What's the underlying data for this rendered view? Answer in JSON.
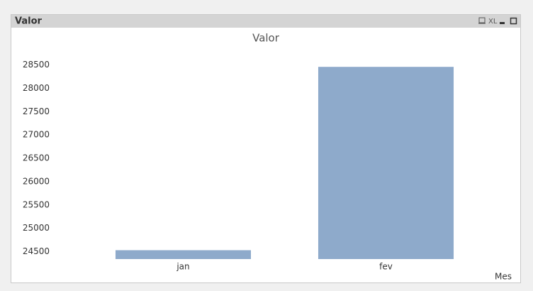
{
  "window": {
    "title": "Valor",
    "xl_button": "XL"
  },
  "chart_data": {
    "type": "bar",
    "title": "Valor",
    "x_label": "Mes",
    "categories": [
      "jan",
      "fev"
    ],
    "values": [
      24530,
      28460
    ],
    "color": "#8eaacb",
    "ylim": [
      24340,
      28600
    ],
    "yticks": [
      24500,
      25000,
      25500,
      26000,
      26500,
      27000,
      27500,
      28000,
      28500
    ],
    "grid": false
  }
}
